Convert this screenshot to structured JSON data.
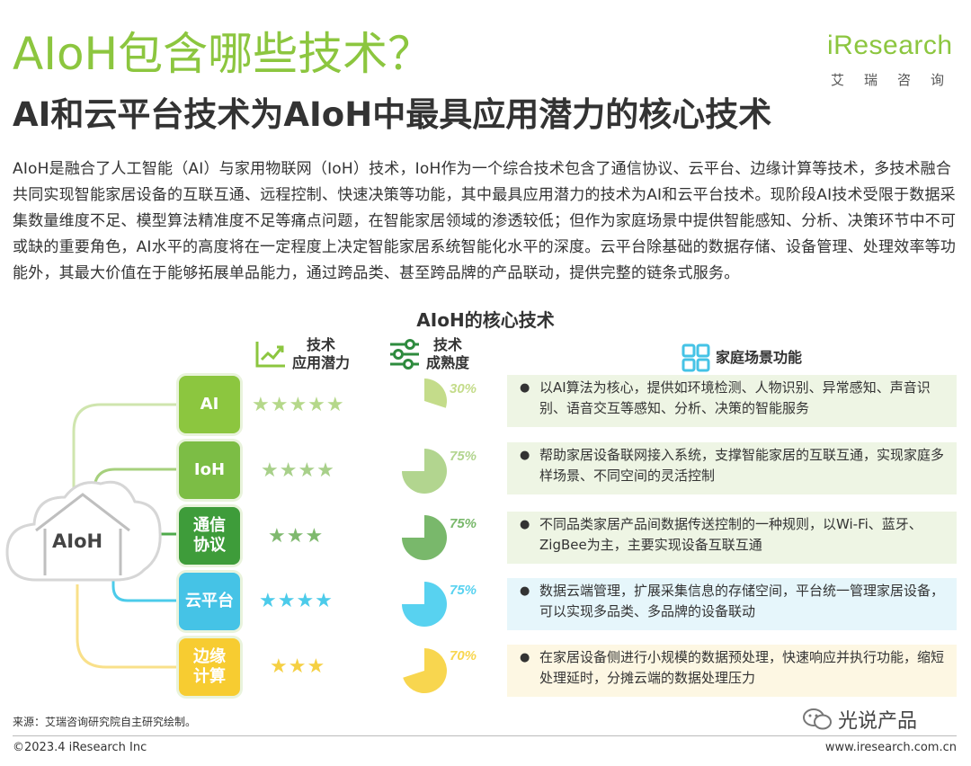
{
  "title": "AIoH包含哪些技术？",
  "subtitle": "AI和云平台技术为AIoH中最具应用潜力的核心技术",
  "logo": {
    "main": "iResearch",
    "sub": "艾瑞咨询"
  },
  "intro": "AIoH是融合了人工智能（AI）与家用物联网（IoH）技术，IoH作为一个综合技术包含了通信协议、云平台、边缘计算等技术，多技术融合共同实现智能家居设备的互联互通、远程控制、快速决策等功能，其中最具应用潜力的技术为AI和云平台技术。现阶段AI技术受限于数据采集数量维度不足、模型算法精准度不足等痛点问题，在智能家居领域的渗透较低；但作为家庭场景中提供智能感知、分析、决策环节中不可或缺的重要角色，AI水平的高度将在一定程度上决定智能家居系统智能化水平的深度。云平台除基础的数据存储、设备管理、处理效率等功能外，其最大价值在于能够拓展单品能力，通过跨品类、甚至跨品牌的产品联动，提供完整的链条式服务。",
  "diagram": {
    "title": "AIoH的核心技术",
    "center_label": "AIoH",
    "headers": {
      "potential": [
        "技术",
        "应用潜力"
      ],
      "maturity": [
        "技术",
        "成熟度"
      ],
      "function": "家庭场景功能"
    },
    "rows": [
      {
        "name": "AI",
        "color": "#8cc63f",
        "light": "#eef5e4",
        "star_color": "#b5d88a",
        "stars": 4.5,
        "stars_text": "★★★★★",
        "maturity": 0.3,
        "maturity_label": "30%",
        "pie_color": "#c4dc8a",
        "desc": "以AI算法为核心，提供如环境检测、人物识别、异常感知、声音识别、语音交互等感知、分析、决策的智能服务"
      },
      {
        "name": "IoH",
        "color": "#7cbd45",
        "light": "#eef5e4",
        "star_color": "#a8d08a",
        "stars": 3.5,
        "stars_text": "★★★★",
        "maturity": 0.75,
        "maturity_label": "75%",
        "pie_color": "#b2d58f",
        "desc": "帮助家居设备联网接入系统，支撑智能家居的互联互通，实现家庭多样场景、不同空间的灵活控制"
      },
      {
        "name": "通信协议",
        "color": "#3e9c3a",
        "light": "#eef5e4",
        "star_color": "#7fb96e",
        "stars": 2.5,
        "stars_text": "★★★",
        "maturity": 0.75,
        "maturity_label": "75%",
        "pie_color": "#79b86b",
        "desc": "不同品类家居产品间数据传送控制的一种规则，以Wi-Fi、蓝牙、ZigBee为主，主要实现设备互联互通"
      },
      {
        "name": "云平台",
        "color": "#45c3e6",
        "light": "#e6f6fb",
        "star_color": "#4ccbea",
        "stars": 4,
        "stars_text": "★★★★",
        "maturity": 0.75,
        "maturity_label": "75%",
        "pie_color": "#58d2f0",
        "desc": "数据云端管理，扩展采集信息的存储空间，平台统一管理家居设备，可以实现多品类、多品牌的设备联动"
      },
      {
        "name": "边缘计算",
        "color": "#f7cc31",
        "light": "#fdf7e3",
        "star_color": "#f5d043",
        "stars": 3,
        "stars_text": "★★★",
        "maturity": 0.7,
        "maturity_label": "70%",
        "pie_color": "#f8d64f",
        "desc": "在家居设备侧进行小规模的数据预处理，快速响应并执行功能，缩短处理延时，分摊云端的数据处理压力"
      }
    ]
  },
  "source": "来源：艾瑞咨询研究院自主研究绘制。",
  "copyright": "©2023.4 iResearch Inc",
  "website": "www.iresearch.com.cn",
  "watermark": "光说产品",
  "colors": {
    "brand_green": "#8cc63f"
  }
}
